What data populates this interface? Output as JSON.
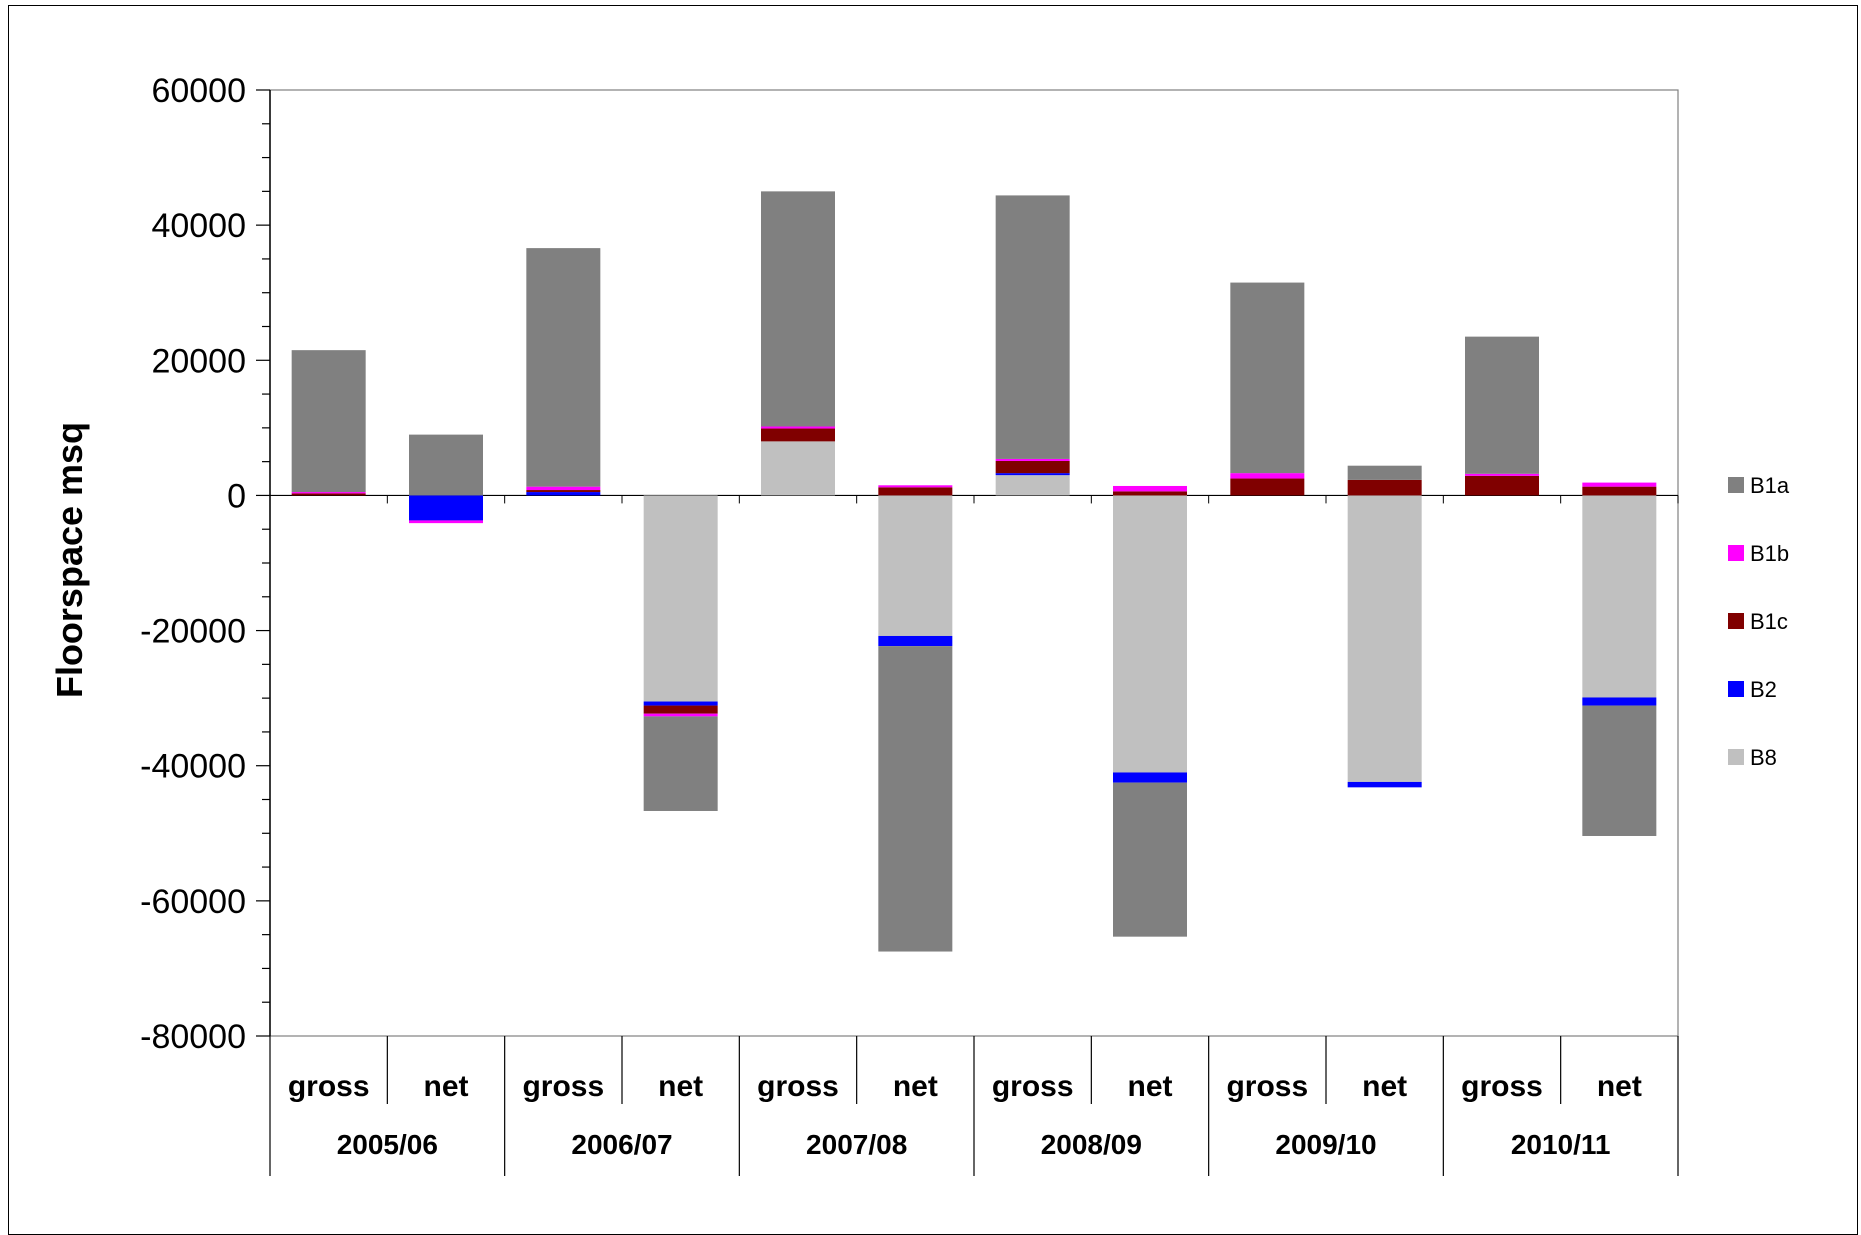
{
  "chart_data": {
    "type": "bar",
    "stacked": true,
    "title": "",
    "xlabel": "",
    "ylabel": "Floorspace msq",
    "ylim": [
      -80000,
      60000
    ],
    "yticks": [
      60000,
      40000,
      20000,
      0,
      -20000,
      -40000,
      -60000,
      -80000
    ],
    "grid": false,
    "legend_position": "right",
    "categories": [
      {
        "year": "2005/06",
        "sub": "gross"
      },
      {
        "year": "2005/06",
        "sub": "net"
      },
      {
        "year": "2006/07",
        "sub": "gross"
      },
      {
        "year": "2006/07",
        "sub": "net"
      },
      {
        "year": "2007/08",
        "sub": "gross"
      },
      {
        "year": "2007/08",
        "sub": "net"
      },
      {
        "year": "2008/09",
        "sub": "gross"
      },
      {
        "year": "2008/09",
        "sub": "net"
      },
      {
        "year": "2009/10",
        "sub": "gross"
      },
      {
        "year": "2009/10",
        "sub": "net"
      },
      {
        "year": "2010/11",
        "sub": "gross"
      },
      {
        "year": "2010/11",
        "sub": "net"
      }
    ],
    "years": [
      "2005/06",
      "2006/07",
      "2007/08",
      "2008/09",
      "2009/10",
      "2010/11"
    ],
    "stack_order": [
      "B8",
      "B2",
      "B1c",
      "B1b",
      "B1a"
    ],
    "series": [
      {
        "name": "B1a",
        "color": "#808080",
        "values": [
          21000,
          9000,
          35300,
          -14000,
          34800,
          -45200,
          39000,
          -22800,
          28200,
          2100,
          20300,
          -19300
        ]
      },
      {
        "name": "B1b",
        "color": "#ff00ff",
        "values": [
          200,
          -400,
          500,
          -400,
          300,
          300,
          300,
          800,
          800,
          0,
          300,
          600
        ]
      },
      {
        "name": "B1c",
        "color": "#800000",
        "values": [
          300,
          0,
          300,
          -1200,
          1900,
          1200,
          1800,
          600,
          2500,
          2300,
          2900,
          1300
        ]
      },
      {
        "name": "B2",
        "color": "#0000ff",
        "values": [
          0,
          -3700,
          500,
          -600,
          0,
          -1500,
          300,
          -1500,
          0,
          -800,
          0,
          -1200
        ]
      },
      {
        "name": "B8",
        "color": "#c0c0c0",
        "values": [
          0,
          0,
          0,
          -30500,
          8000,
          -20800,
          3000,
          -41000,
          0,
          -42400,
          0,
          -29900
        ]
      }
    ]
  }
}
